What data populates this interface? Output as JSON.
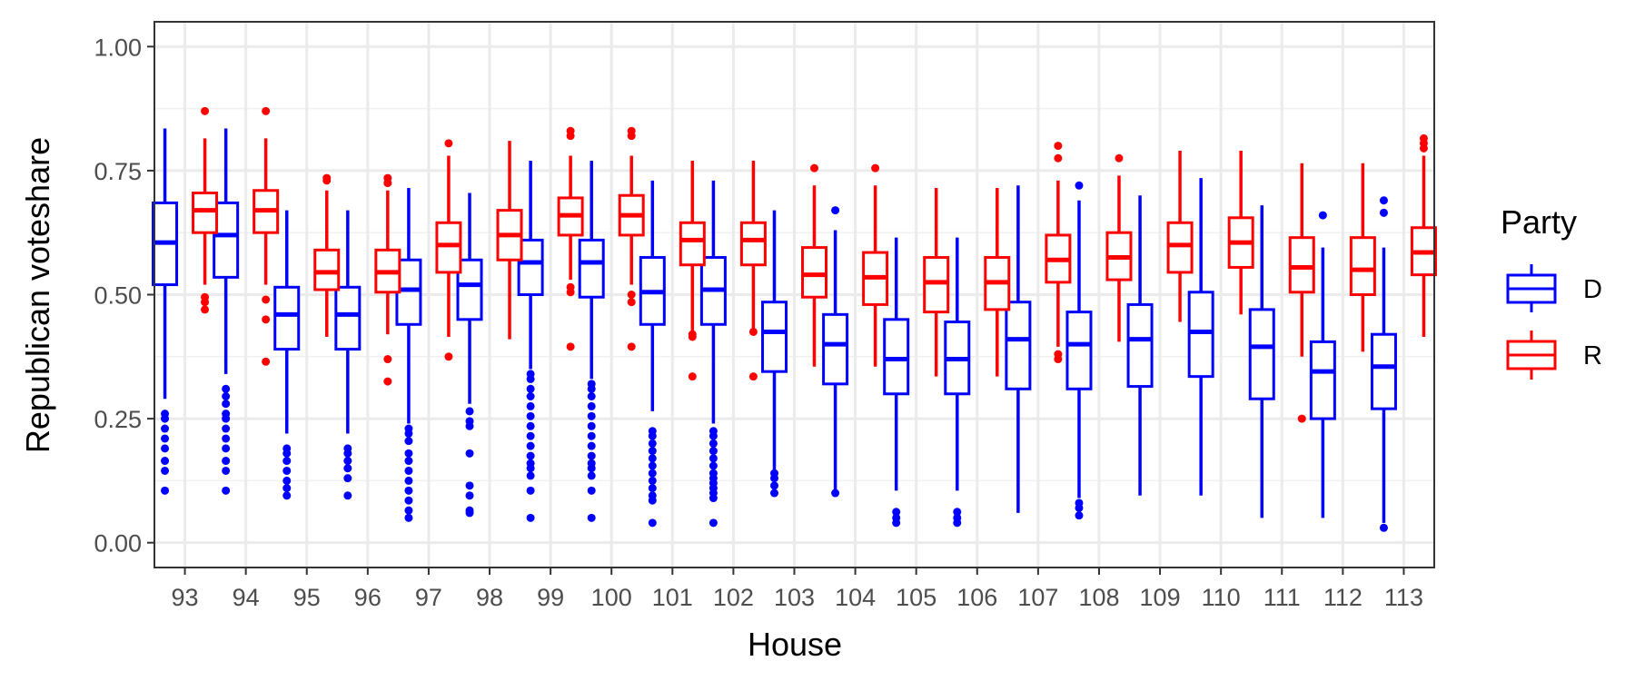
{
  "chart_data": {
    "type": "boxplot",
    "xlabel": "House",
    "ylabel": "Republican voteshare",
    "ylim": [
      -0.05,
      1.05
    ],
    "y_ticks": [
      "0.00",
      "0.25",
      "0.50",
      "0.75",
      "1.00"
    ],
    "y_tick_values": [
      0.0,
      0.25,
      0.5,
      0.75,
      1.0
    ],
    "categories": [
      "93",
      "94",
      "95",
      "96",
      "97",
      "98",
      "99",
      "100",
      "101",
      "102",
      "103",
      "104",
      "105",
      "106",
      "107",
      "108",
      "109",
      "110",
      "111",
      "112",
      "113"
    ],
    "grid": true,
    "legend": {
      "title": "Party",
      "placement": "right"
    },
    "series": [
      {
        "name": "D",
        "color": "#0000ff",
        "boxes": [
          {
            "lw": 0.29,
            "q1": 0.52,
            "med": 0.605,
            "q3": 0.685,
            "uw": 0.835,
            "out": [
              0.105,
              0.145,
              0.165,
              0.19,
              0.21,
              0.23,
              0.25,
              0.26
            ]
          },
          {
            "lw": 0.34,
            "q1": 0.535,
            "med": 0.62,
            "q3": 0.685,
            "uw": 0.835,
            "out": [
              0.105,
              0.145,
              0.165,
              0.19,
              0.21,
              0.23,
              0.25,
              0.26,
              0.28,
              0.295,
              0.31
            ]
          },
          {
            "lw": 0.22,
            "q1": 0.39,
            "med": 0.46,
            "q3": 0.515,
            "uw": 0.67,
            "out": [
              0.095,
              0.11,
              0.125,
              0.145,
              0.165,
              0.18,
              0.19
            ]
          },
          {
            "lw": 0.22,
            "q1": 0.39,
            "med": 0.46,
            "q3": 0.515,
            "uw": 0.67,
            "out": [
              0.095,
              0.13,
              0.15,
              0.165,
              0.18,
              0.19
            ]
          },
          {
            "lw": 0.24,
            "q1": 0.44,
            "med": 0.51,
            "q3": 0.57,
            "uw": 0.715,
            "out": [
              0.05,
              0.065,
              0.085,
              0.105,
              0.125,
              0.145,
              0.165,
              0.18,
              0.205,
              0.22,
              0.23
            ]
          },
          {
            "lw": 0.28,
            "q1": 0.45,
            "med": 0.52,
            "q3": 0.57,
            "uw": 0.705,
            "out": [
              0.06,
              0.065,
              0.095,
              0.115,
              0.18,
              0.235,
              0.245,
              0.265
            ]
          },
          {
            "lw": 0.35,
            "q1": 0.5,
            "med": 0.565,
            "q3": 0.61,
            "uw": 0.77,
            "out": [
              0.05,
              0.105,
              0.135,
              0.15,
              0.16,
              0.175,
              0.195,
              0.215,
              0.235,
              0.255,
              0.275,
              0.295,
              0.31,
              0.33,
              0.34
            ]
          },
          {
            "lw": 0.33,
            "q1": 0.495,
            "med": 0.565,
            "q3": 0.61,
            "uw": 0.77,
            "out": [
              0.05,
              0.105,
              0.135,
              0.15,
              0.16,
              0.175,
              0.195,
              0.215,
              0.235,
              0.255,
              0.275,
              0.295,
              0.31,
              0.32
            ]
          },
          {
            "lw": 0.265,
            "q1": 0.44,
            "med": 0.505,
            "q3": 0.575,
            "uw": 0.73,
            "out": [
              0.04,
              0.085,
              0.095,
              0.11,
              0.125,
              0.14,
              0.155,
              0.17,
              0.185,
              0.2,
              0.215,
              0.225
            ]
          },
          {
            "lw": 0.24,
            "q1": 0.44,
            "med": 0.51,
            "q3": 0.575,
            "uw": 0.73,
            "out": [
              0.04,
              0.09,
              0.1,
              0.11,
              0.12,
              0.13,
              0.14,
              0.155,
              0.17,
              0.185,
              0.2,
              0.215,
              0.225
            ]
          },
          {
            "lw": 0.14,
            "q1": 0.345,
            "med": 0.425,
            "q3": 0.485,
            "uw": 0.67,
            "out": [
              0.1,
              0.115,
              0.13,
              0.14
            ]
          },
          {
            "lw": 0.1,
            "q1": 0.32,
            "med": 0.4,
            "q3": 0.46,
            "uw": 0.63,
            "out": [
              0.1,
              0.67
            ]
          },
          {
            "lw": 0.105,
            "q1": 0.3,
            "med": 0.37,
            "q3": 0.45,
            "uw": 0.615,
            "out": [
              0.04,
              0.05,
              0.062
            ]
          },
          {
            "lw": 0.105,
            "q1": 0.3,
            "med": 0.37,
            "q3": 0.445,
            "uw": 0.615,
            "out": [
              0.04,
              0.05,
              0.062
            ]
          },
          {
            "lw": 0.06,
            "q1": 0.31,
            "med": 0.41,
            "q3": 0.485,
            "uw": 0.72,
            "out": []
          },
          {
            "lw": 0.09,
            "q1": 0.31,
            "med": 0.4,
            "q3": 0.465,
            "uw": 0.69,
            "out": [
              0.055,
              0.07,
              0.08,
              0.72
            ]
          },
          {
            "lw": 0.095,
            "q1": 0.315,
            "med": 0.41,
            "q3": 0.48,
            "uw": 0.7,
            "out": []
          },
          {
            "lw": 0.095,
            "q1": 0.335,
            "med": 0.425,
            "q3": 0.505,
            "uw": 0.735,
            "out": []
          },
          {
            "lw": 0.05,
            "q1": 0.29,
            "med": 0.395,
            "q3": 0.47,
            "uw": 0.68,
            "out": []
          },
          {
            "lw": 0.05,
            "q1": 0.25,
            "med": 0.345,
            "q3": 0.405,
            "uw": 0.595,
            "out": [
              0.66
            ]
          },
          {
            "lw": 0.04,
            "q1": 0.27,
            "med": 0.355,
            "q3": 0.42,
            "uw": 0.595,
            "out": [
              0.03,
              0.665,
              0.69
            ]
          }
        ]
      },
      {
        "name": "R",
        "color": "#ff0000",
        "boxes": [
          {
            "lw": 0.52,
            "q1": 0.625,
            "med": 0.67,
            "q3": 0.705,
            "uw": 0.815,
            "out": [
              0.47,
              0.485,
              0.495,
              0.87
            ]
          },
          {
            "lw": 0.52,
            "q1": 0.625,
            "med": 0.67,
            "q3": 0.71,
            "uw": 0.815,
            "out": [
              0.365,
              0.45,
              0.49,
              0.87
            ]
          },
          {
            "lw": 0.415,
            "q1": 0.51,
            "med": 0.545,
            "q3": 0.59,
            "uw": 0.71,
            "out": [
              0.73,
              0.735
            ]
          },
          {
            "lw": 0.42,
            "q1": 0.505,
            "med": 0.545,
            "q3": 0.59,
            "uw": 0.71,
            "out": [
              0.325,
              0.37,
              0.725,
              0.735
            ]
          },
          {
            "lw": 0.415,
            "q1": 0.545,
            "med": 0.6,
            "q3": 0.645,
            "uw": 0.78,
            "out": [
              0.375,
              0.805
            ]
          },
          {
            "lw": 0.41,
            "q1": 0.57,
            "med": 0.62,
            "q3": 0.67,
            "uw": 0.81,
            "out": []
          },
          {
            "lw": 0.53,
            "q1": 0.62,
            "med": 0.66,
            "q3": 0.695,
            "uw": 0.78,
            "out": [
              0.395,
              0.505,
              0.515,
              0.82,
              0.83
            ]
          },
          {
            "lw": 0.52,
            "q1": 0.62,
            "med": 0.66,
            "q3": 0.7,
            "uw": 0.78,
            "out": [
              0.395,
              0.485,
              0.5,
              0.82,
              0.83
            ]
          },
          {
            "lw": 0.425,
            "q1": 0.56,
            "med": 0.61,
            "q3": 0.645,
            "uw": 0.77,
            "out": [
              0.335,
              0.415,
              0.42
            ]
          },
          {
            "lw": 0.425,
            "q1": 0.56,
            "med": 0.61,
            "q3": 0.645,
            "uw": 0.77,
            "out": [
              0.335,
              0.425
            ]
          },
          {
            "lw": 0.355,
            "q1": 0.495,
            "med": 0.54,
            "q3": 0.595,
            "uw": 0.72,
            "out": [
              0.755
            ]
          },
          {
            "lw": 0.355,
            "q1": 0.48,
            "med": 0.535,
            "q3": 0.585,
            "uw": 0.72,
            "out": [
              0.755
            ]
          },
          {
            "lw": 0.335,
            "q1": 0.465,
            "med": 0.525,
            "q3": 0.575,
            "uw": 0.715,
            "out": []
          },
          {
            "lw": 0.335,
            "q1": 0.47,
            "med": 0.525,
            "q3": 0.575,
            "uw": 0.715,
            "out": []
          },
          {
            "lw": 0.395,
            "q1": 0.525,
            "med": 0.57,
            "q3": 0.62,
            "uw": 0.73,
            "out": [
              0.37,
              0.38,
              0.775,
              0.8
            ]
          },
          {
            "lw": 0.405,
            "q1": 0.53,
            "med": 0.575,
            "q3": 0.625,
            "uw": 0.74,
            "out": [
              0.775
            ]
          },
          {
            "lw": 0.445,
            "q1": 0.545,
            "med": 0.6,
            "q3": 0.645,
            "uw": 0.79,
            "out": []
          },
          {
            "lw": 0.46,
            "q1": 0.555,
            "med": 0.605,
            "q3": 0.655,
            "uw": 0.79,
            "out": []
          },
          {
            "lw": 0.375,
            "q1": 0.505,
            "med": 0.555,
            "q3": 0.615,
            "uw": 0.765,
            "out": [
              0.25
            ]
          },
          {
            "lw": 0.385,
            "q1": 0.5,
            "med": 0.55,
            "q3": 0.615,
            "uw": 0.765,
            "out": []
          },
          {
            "lw": 0.415,
            "q1": 0.54,
            "med": 0.585,
            "q3": 0.635,
            "uw": 0.78,
            "out": [
              0.795,
              0.805,
              0.815
            ]
          }
        ]
      }
    ]
  }
}
